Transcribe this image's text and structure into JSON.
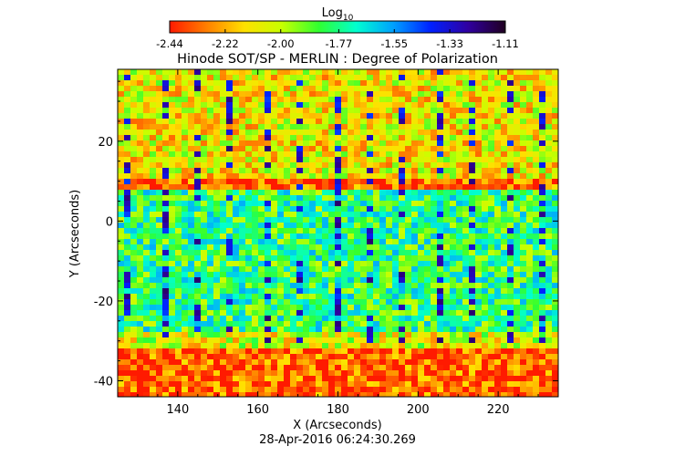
{
  "chart_data": {
    "type": "heatmap",
    "title": "Hinode SOT/SP - MERLIN : Degree of Polarization",
    "xlabel": "X (Arcseconds)",
    "ylabel": "Y (Arcseconds)",
    "timestamp": "28-Apr-2016 06:24:30.269",
    "xlim": [
      125,
      235
    ],
    "ylim": [
      -44,
      38
    ],
    "x_ticks": [
      140,
      160,
      180,
      200,
      220
    ],
    "y_ticks": [
      20,
      0,
      -20,
      -40
    ],
    "colorbar": {
      "title_base": "Log",
      "title_sub": "10",
      "range": [
        -2.44,
        -1.11
      ],
      "ticks": [
        "-2.44",
        "-2.22",
        "-2.00",
        "-1.77",
        "-1.55",
        "-1.33",
        "-1.11"
      ],
      "colormap": [
        "#ff1a00",
        "#ff8000",
        "#ffe000",
        "#c8ff00",
        "#30ff30",
        "#00ffd0",
        "#00a0ff",
        "#0020ff",
        "#3000a0",
        "#200020"
      ]
    },
    "field_description": {
      "background_level_log10": -2.35,
      "central_band_level_log10": -1.8,
      "central_band_y_range": [
        -28,
        8
      ],
      "upper_band_y_range": [
        10,
        38
      ],
      "peak_level_log10": -1.2
    }
  }
}
